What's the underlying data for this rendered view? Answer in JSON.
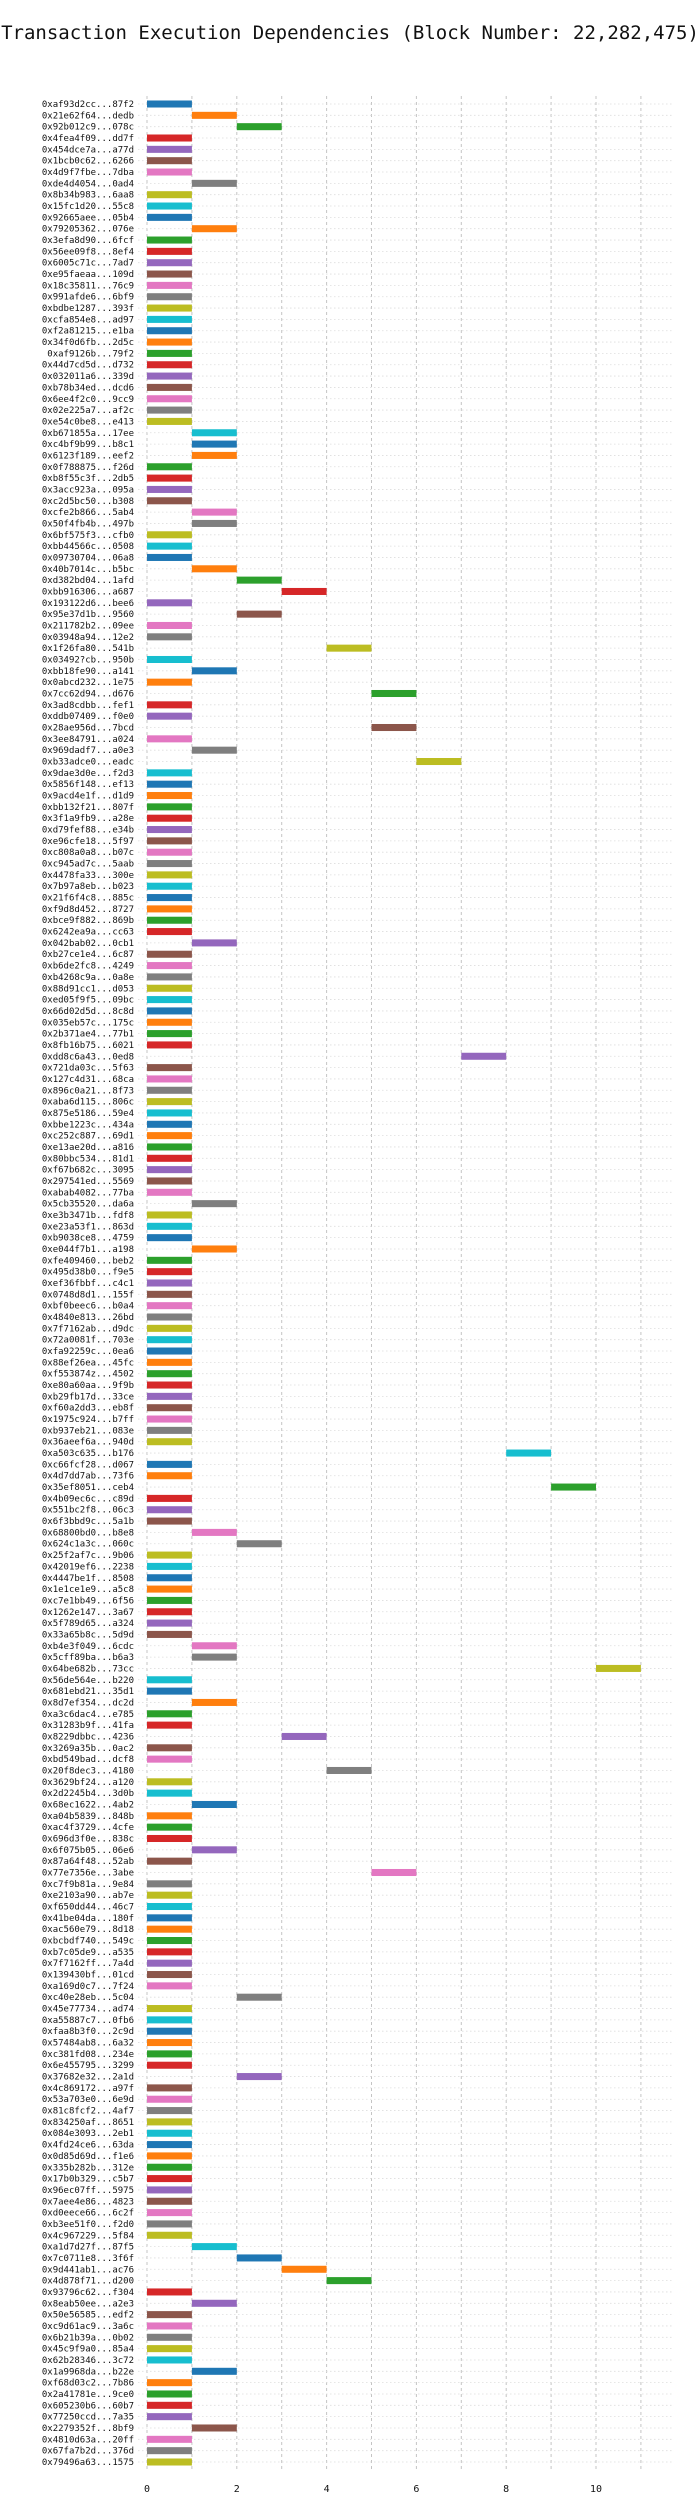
{
  "chart_data": {
    "type": "bar",
    "title": "Transaction Execution Dependencies (Block Number: 22,282,475)",
    "xlim": [
      0,
      11.2
    ],
    "xticks": [
      0,
      2,
      4,
      6,
      8,
      10
    ],
    "grid": true,
    "palette": [
      "#1f77b4",
      "#ff7f0e",
      "#2ca02c",
      "#d62728",
      "#9467bd",
      "#8c564b",
      "#e377c2",
      "#7f7f7f",
      "#bcbd22",
      "#17becf"
    ],
    "rows": [
      {
        "label": "0xaf93d2cc...87f2",
        "start": 0,
        "end": 1
      },
      {
        "label": "0x21e62f64...dedb",
        "start": 1,
        "end": 2
      },
      {
        "label": "0x92b012c9...078c",
        "start": 2,
        "end": 3
      },
      {
        "label": "0x4fea4f09...dd7f",
        "start": 0,
        "end": 1
      },
      {
        "label": "0x454dce7a...a77d",
        "start": 0,
        "end": 1
      },
      {
        "label": "0x1bcb0c62...6266",
        "start": 0,
        "end": 1
      },
      {
        "label": "0x4d9f7fbe...7dba",
        "start": 0,
        "end": 1
      },
      {
        "label": "0xde4d4054...0ad4",
        "start": 1,
        "end": 2
      },
      {
        "label": "0x8b34b983...6aa8",
        "start": 0,
        "end": 1
      },
      {
        "label": "0x15fc1d20...55c8",
        "start": 0,
        "end": 1
      },
      {
        "label": "0x92665aee...05b4",
        "start": 0,
        "end": 1
      },
      {
        "label": "0x79205362...076e",
        "start": 1,
        "end": 2
      },
      {
        "label": "0x3efa8d90...6fcf",
        "start": 0,
        "end": 1
      },
      {
        "label": "0x56ee09f8...8ef4",
        "start": 0,
        "end": 1
      },
      {
        "label": "0x6005c71c...7ad7",
        "start": 0,
        "end": 1
      },
      {
        "label": "0xe95faeaa...109d",
        "start": 0,
        "end": 1
      },
      {
        "label": "0x18c35811...76c9",
        "start": 0,
        "end": 1
      },
      {
        "label": "0x991afde6...6bf9",
        "start": 0,
        "end": 1
      },
      {
        "label": "0xbdbe1287...393f",
        "start": 0,
        "end": 1
      },
      {
        "label": "0xcfa854e8...ad97",
        "start": 0,
        "end": 1
      },
      {
        "label": "0xf2a81215...e1ba",
        "start": 0,
        "end": 1
      },
      {
        "label": "0x34f0d6fb...2d5c",
        "start": 0,
        "end": 1
      },
      {
        "label": "0xaf9126b...79f2",
        "start": 0,
        "end": 1
      },
      {
        "label": "0x44d7cd5d...d732",
        "start": 0,
        "end": 1
      },
      {
        "label": "0x032011a6...339d",
        "start": 0,
        "end": 1
      },
      {
        "label": "0xb78b34ed...dcd6",
        "start": 0,
        "end": 1
      },
      {
        "label": "0x6ee4f2c0...9cc9",
        "start": 0,
        "end": 1
      },
      {
        "label": "0x02e225a7...af2c",
        "start": 0,
        "end": 1
      },
      {
        "label": "0xe54c0be8...e413",
        "start": 0,
        "end": 1
      },
      {
        "label": "0xb671855a...17ee",
        "start": 1,
        "end": 2
      },
      {
        "label": "0xc4bf9b99...b8c1",
        "start": 1,
        "end": 2
      },
      {
        "label": "0x6123f189...eef2",
        "start": 1,
        "end": 2
      },
      {
        "label": "0x0f788875...f26d",
        "start": 0,
        "end": 1
      },
      {
        "label": "0xb8f55c3f...2db5",
        "start": 0,
        "end": 1
      },
      {
        "label": "0x3acc923a...095a",
        "start": 0,
        "end": 1
      },
      {
        "label": "0xc2d5bc50...b308",
        "start": 0,
        "end": 1
      },
      {
        "label": "0xcfe2b866...5ab4",
        "start": 1,
        "end": 2
      },
      {
        "label": "0x50f4fb4b...497b",
        "start": 1,
        "end": 2
      },
      {
        "label": "0x6bf575f3...cfb0",
        "start": 0,
        "end": 1
      },
      {
        "label": "0xbb44566c...0508",
        "start": 0,
        "end": 1
      },
      {
        "label": "0x09730704...06a8",
        "start": 0,
        "end": 1
      },
      {
        "label": "0x40b7014c...b5bc",
        "start": 1,
        "end": 2
      },
      {
        "label": "0xd382bd04...1afd",
        "start": 2,
        "end": 3
      },
      {
        "label": "0xbb916306...a687",
        "start": 3,
        "end": 4
      },
      {
        "label": "0x193122d6...bee6",
        "start": 0,
        "end": 1
      },
      {
        "label": "0x95e37d1b...9560",
        "start": 2,
        "end": 3
      },
      {
        "label": "0x211782b2...09ee",
        "start": 0,
        "end": 1
      },
      {
        "label": "0x03948a94...12e2",
        "start": 0,
        "end": 1
      },
      {
        "label": "0x1f26fa80...541b",
        "start": 4,
        "end": 5
      },
      {
        "label": "0x03492?cb...950b",
        "start": 0,
        "end": 1
      },
      {
        "label": "0xbb18fe90...a141",
        "start": 1,
        "end": 2
      },
      {
        "label": "0x0abcd232...1e75",
        "start": 0,
        "end": 1
      },
      {
        "label": "0x7cc62d94...d676",
        "start": 5,
        "end": 6
      },
      {
        "label": "0x3ad8cdbb...fef1",
        "start": 0,
        "end": 1
      },
      {
        "label": "0xddb07409...f0e0",
        "start": 0,
        "end": 1
      },
      {
        "label": "0x28ae956d...7bcd",
        "start": 5,
        "end": 6
      },
      {
        "label": "0x3ee84791...a024",
        "start": 0,
        "end": 1
      },
      {
        "label": "0x969dadf7...a0e3",
        "start": 1,
        "end": 2
      },
      {
        "label": "0xb33adce0...eadc",
        "start": 6,
        "end": 7
      },
      {
        "label": "0x9dae3d0e...f2d3",
        "start": 0,
        "end": 1
      },
      {
        "label": "0x5856f148...ef13",
        "start": 0,
        "end": 1
      },
      {
        "label": "0x9acd4e1f...d1d9",
        "start": 0,
        "end": 1
      },
      {
        "label": "0xbb132f21...807f",
        "start": 0,
        "end": 1
      },
      {
        "label": "0x3f1a9fb9...a28e",
        "start": 0,
        "end": 1
      },
      {
        "label": "0xd79fef88...e34b",
        "start": 0,
        "end": 1
      },
      {
        "label": "0xe96cfe18...5f97",
        "start": 0,
        "end": 1
      },
      {
        "label": "0xc808a0a8...b07c",
        "start": 0,
        "end": 1
      },
      {
        "label": "0xc945ad7c...5aab",
        "start": 0,
        "end": 1
      },
      {
        "label": "0x4478fa33...300e",
        "start": 0,
        "end": 1
      },
      {
        "label": "0x7b97a8eb...b023",
        "start": 0,
        "end": 1
      },
      {
        "label": "0x21f6f4c8...885c",
        "start": 0,
        "end": 1
      },
      {
        "label": "0xf9d8d452...8727",
        "start": 0,
        "end": 1
      },
      {
        "label": "0xbce9f882...869b",
        "start": 0,
        "end": 1
      },
      {
        "label": "0x6242ea9a...cc63",
        "start": 0,
        "end": 1
      },
      {
        "label": "0x042bab02...0cb1",
        "start": 1,
        "end": 2
      },
      {
        "label": "0xb27ce1e4...6c87",
        "start": 0,
        "end": 1
      },
      {
        "label": "0xb6de2fc8...4249",
        "start": 0,
        "end": 1
      },
      {
        "label": "0xb4268c9a...0a8e",
        "start": 0,
        "end": 1
      },
      {
        "label": "0x88d91cc1...d053",
        "start": 0,
        "end": 1
      },
      {
        "label": "0xed05f9f5...09bc",
        "start": 0,
        "end": 1
      },
      {
        "label": "0x66d02d5d...8c8d",
        "start": 0,
        "end": 1
      },
      {
        "label": "0x035eb57c...175c",
        "start": 0,
        "end": 1
      },
      {
        "label": "0x2b371ae4...77b1",
        "start": 0,
        "end": 1
      },
      {
        "label": "0x8fb16b75...6021",
        "start": 0,
        "end": 1
      },
      {
        "label": "0xdd8c6a43...0ed8",
        "start": 7,
        "end": 8
      },
      {
        "label": "0x721da03c...5f63",
        "start": 0,
        "end": 1
      },
      {
        "label": "0x127c4d31...68ca",
        "start": 0,
        "end": 1
      },
      {
        "label": "0x896c0a21...8f73",
        "start": 0,
        "end": 1
      },
      {
        "label": "0xaba6d115...806c",
        "start": 0,
        "end": 1
      },
      {
        "label": "0x875e5186...59e4",
        "start": 0,
        "end": 1
      },
      {
        "label": "0xbbe1223c...434a",
        "start": 0,
        "end": 1
      },
      {
        "label": "0xc252c887...69d1",
        "start": 0,
        "end": 1
      },
      {
        "label": "0xe13ae20d...a816",
        "start": 0,
        "end": 1
      },
      {
        "label": "0x80bbc534...81d1",
        "start": 0,
        "end": 1
      },
      {
        "label": "0xf67b682c...3095",
        "start": 0,
        "end": 1
      },
      {
        "label": "0x297541ed...5569",
        "start": 0,
        "end": 1
      },
      {
        "label": "0xabab4082...77ba",
        "start": 0,
        "end": 1
      },
      {
        "label": "0x5cb35520...da6a",
        "start": 1,
        "end": 2
      },
      {
        "label": "0xe3b3471b...fdf8",
        "start": 0,
        "end": 1
      },
      {
        "label": "0xe23a53f1...863d",
        "start": 0,
        "end": 1
      },
      {
        "label": "0xb9038ce8...4759",
        "start": 0,
        "end": 1
      },
      {
        "label": "0xe044f7b1...a198",
        "start": 1,
        "end": 2
      },
      {
        "label": "0xfe409460...beb2",
        "start": 0,
        "end": 1
      },
      {
        "label": "0x495d38b0...f9e5",
        "start": 0,
        "end": 1
      },
      {
        "label": "0xef36fbbf...c4c1",
        "start": 0,
        "end": 1
      },
      {
        "label": "0x0748d8d1...155f",
        "start": 0,
        "end": 1
      },
      {
        "label": "0xbf0beec6...b0a4",
        "start": 0,
        "end": 1
      },
      {
        "label": "0x4840e813...26bd",
        "start": 0,
        "end": 1
      },
      {
        "label": "0x7f7162ab...d9dc",
        "start": 0,
        "end": 1
      },
      {
        "label": "0x72a0081f...703e",
        "start": 0,
        "end": 1
      },
      {
        "label": "0xfa92259c...0ea6",
        "start": 0,
        "end": 1
      },
      {
        "label": "0x88ef26ea...45fc",
        "start": 0,
        "end": 1
      },
      {
        "label": "0xf553874z...4502",
        "start": 0,
        "end": 1
      },
      {
        "label": "0xe80a60aa...9f9b",
        "start": 0,
        "end": 1
      },
      {
        "label": "0xb29fb17d...33ce",
        "start": 0,
        "end": 1
      },
      {
        "label": "0xf60a2dd3...eb8f",
        "start": 0,
        "end": 1
      },
      {
        "label": "0x1975c924...b7ff",
        "start": 0,
        "end": 1
      },
      {
        "label": "0xb937eb21...083e",
        "start": 0,
        "end": 1
      },
      {
        "label": "0x36aeef6a...940d",
        "start": 0,
        "end": 1
      },
      {
        "label": "0xa503c635...b176",
        "start": 8,
        "end": 9
      },
      {
        "label": "0xc66fcf28...d067",
        "start": 0,
        "end": 1
      },
      {
        "label": "0x4d7dd7ab...73f6",
        "start": 0,
        "end": 1
      },
      {
        "label": "0x35ef8051...ceb4",
        "start": 9,
        "end": 10
      },
      {
        "label": "0x4b09ec6c...c89d",
        "start": 0,
        "end": 1
      },
      {
        "label": "0x551bc2f8...06c3",
        "start": 0,
        "end": 1
      },
      {
        "label": "0x6f3bbd9c...5a1b",
        "start": 0,
        "end": 1
      },
      {
        "label": "0x68800bd0...b8e8",
        "start": 1,
        "end": 2
      },
      {
        "label": "0x624c1a3c...060c",
        "start": 2,
        "end": 3
      },
      {
        "label": "0x25f2af7c...9b06",
        "start": 0,
        "end": 1
      },
      {
        "label": "0x42019ef6...2238",
        "start": 0,
        "end": 1
      },
      {
        "label": "0x4447be1f...8508",
        "start": 0,
        "end": 1
      },
      {
        "label": "0x1e1ce1e9...a5c8",
        "start": 0,
        "end": 1
      },
      {
        "label": "0xc7e1bb49...6f56",
        "start": 0,
        "end": 1
      },
      {
        "label": "0x1262e147...3a67",
        "start": 0,
        "end": 1
      },
      {
        "label": "0x5f789d65...a324",
        "start": 0,
        "end": 1
      },
      {
        "label": "0x33a65b8c...5d9d",
        "start": 0,
        "end": 1
      },
      {
        "label": "0xb4e3f049...6cdc",
        "start": 1,
        "end": 2
      },
      {
        "label": "0x5cff89ba...b6a3",
        "start": 1,
        "end": 2
      },
      {
        "label": "0x64be682b...73cc",
        "start": 10,
        "end": 11
      },
      {
        "label": "0x56de564e...b220",
        "start": 0,
        "end": 1
      },
      {
        "label": "0x681ebd21...35d1",
        "start": 0,
        "end": 1
      },
      {
        "label": "0x8d7ef354...dc2d",
        "start": 1,
        "end": 2
      },
      {
        "label": "0xa3c6dac4...e785",
        "start": 0,
        "end": 1
      },
      {
        "label": "0x31283b9f...41fa",
        "start": 0,
        "end": 1
      },
      {
        "label": "0x8229dbbc...4236",
        "start": 3,
        "end": 4
      },
      {
        "label": "0x3269a35b...0ac2",
        "start": 0,
        "end": 1
      },
      {
        "label": "0xbd549bad...dcf8",
        "start": 0,
        "end": 1
      },
      {
        "label": "0x20f8dec3...4180",
        "start": 4,
        "end": 5
      },
      {
        "label": "0x3629bf24...a120",
        "start": 0,
        "end": 1
      },
      {
        "label": "0x2d2245b4...3d0b",
        "start": 0,
        "end": 1
      },
      {
        "label": "0x68ec1622...4ab2",
        "start": 1,
        "end": 2
      },
      {
        "label": "0xa04b5839...848b",
        "start": 0,
        "end": 1
      },
      {
        "label": "0xac4f3729...4cfe",
        "start": 0,
        "end": 1
      },
      {
        "label": "0x696d3f0e...838c",
        "start": 0,
        "end": 1
      },
      {
        "label": "0x6f075b05...06e6",
        "start": 1,
        "end": 2
      },
      {
        "label": "0x87a64f48...52ab",
        "start": 0,
        "end": 1
      },
      {
        "label": "0x77e7356e...3abe",
        "start": 5,
        "end": 6
      },
      {
        "label": "0xc7f9b81a...9e84",
        "start": 0,
        "end": 1
      },
      {
        "label": "0xe2103a90...ab7e",
        "start": 0,
        "end": 1
      },
      {
        "label": "0xf650dd44...46c7",
        "start": 0,
        "end": 1
      },
      {
        "label": "0x41be04da...180f",
        "start": 0,
        "end": 1
      },
      {
        "label": "0xac560e79...8d18",
        "start": 0,
        "end": 1
      },
      {
        "label": "0xbcbdf740...549c",
        "start": 0,
        "end": 1
      },
      {
        "label": "0xb7c05de9...a535",
        "start": 0,
        "end": 1
      },
      {
        "label": "0x7f7162ff...7a4d",
        "start": 0,
        "end": 1
      },
      {
        "label": "0x139430bf...01cd",
        "start": 0,
        "end": 1
      },
      {
        "label": "0xa169d0c7...7f24",
        "start": 0,
        "end": 1
      },
      {
        "label": "0xc40e28eb...5c04",
        "start": 2,
        "end": 3
      },
      {
        "label": "0x45e77734...ad74",
        "start": 0,
        "end": 1
      },
      {
        "label": "0xa55887c7...0fb6",
        "start": 0,
        "end": 1
      },
      {
        "label": "0xfaa8b3f0...2c9d",
        "start": 0,
        "end": 1
      },
      {
        "label": "0x57484ab8...6a32",
        "start": 0,
        "end": 1
      },
      {
        "label": "0xc381fd08...234e",
        "start": 0,
        "end": 1
      },
      {
        "label": "0x6e455795...3299",
        "start": 0,
        "end": 1
      },
      {
        "label": "0x37682e32...2a1d",
        "start": 2,
        "end": 3
      },
      {
        "label": "0x4c869172...a97f",
        "start": 0,
        "end": 1
      },
      {
        "label": "0x53a703e0...6e9d",
        "start": 0,
        "end": 1
      },
      {
        "label": "0x81c8fcf2...4af7",
        "start": 0,
        "end": 1
      },
      {
        "label": "0x834250af...8651",
        "start": 0,
        "end": 1
      },
      {
        "label": "0x084e3093...2eb1",
        "start": 0,
        "end": 1
      },
      {
        "label": "0x4fd24ce6...63da",
        "start": 0,
        "end": 1
      },
      {
        "label": "0x0d85d69d...f1e6",
        "start": 0,
        "end": 1
      },
      {
        "label": "0x335b282b...312e",
        "start": 0,
        "end": 1
      },
      {
        "label": "0x17b0b329...c5b7",
        "start": 0,
        "end": 1
      },
      {
        "label": "0x96ec07ff...5975",
        "start": 0,
        "end": 1
      },
      {
        "label": "0x7aee4e86...4823",
        "start": 0,
        "end": 1
      },
      {
        "label": "0xd0eece66...6c2f",
        "start": 0,
        "end": 1
      },
      {
        "label": "0xb3ee51f0...f2d0",
        "start": 0,
        "end": 1
      },
      {
        "label": "0x4c967229...5f84",
        "start": 0,
        "end": 1
      },
      {
        "label": "0xa1d7d27f...87f5",
        "start": 1,
        "end": 2
      },
      {
        "label": "0x7c0711e8...3f6f",
        "start": 2,
        "end": 3
      },
      {
        "label": "0x9d441ab1...ac76",
        "start": 3,
        "end": 4
      },
      {
        "label": "0x4d878f71...d200",
        "start": 4,
        "end": 5
      },
      {
        "label": "0x93796c62...f304",
        "start": 0,
        "end": 1
      },
      {
        "label": "0x8eab50ee...a2e3",
        "start": 1,
        "end": 2
      },
      {
        "label": "0x50e56585...edf2",
        "start": 0,
        "end": 1
      },
      {
        "label": "0xc9d61ac9...3a6c",
        "start": 0,
        "end": 1
      },
      {
        "label": "0x6b21b39a...0b02",
        "start": 0,
        "end": 1
      },
      {
        "label": "0x45c9f9a0...85a4",
        "start": 0,
        "end": 1
      },
      {
        "label": "0x62b28346...3c72",
        "start": 0,
        "end": 1
      },
      {
        "label": "0x1a9968da...b22e",
        "start": 1,
        "end": 2
      },
      {
        "label": "0xf68d03c2...7b86",
        "start": 0,
        "end": 1
      },
      {
        "label": "0x2a41781e...9ce0",
        "start": 0,
        "end": 1
      },
      {
        "label": "0x605230b6...60b7",
        "start": 0,
        "end": 1
      },
      {
        "label": "0x77250ccd...7a35",
        "start": 0,
        "end": 1
      },
      {
        "label": "0x2279352f...8bf9",
        "start": 1,
        "end": 2
      },
      {
        "label": "0x4810d63a...20ff",
        "start": 0,
        "end": 1
      },
      {
        "label": "0x67fa7b2d...376d",
        "start": 0,
        "end": 1
      },
      {
        "label": "0x79496a63...1575",
        "start": 0,
        "end": 1
      }
    ]
  }
}
